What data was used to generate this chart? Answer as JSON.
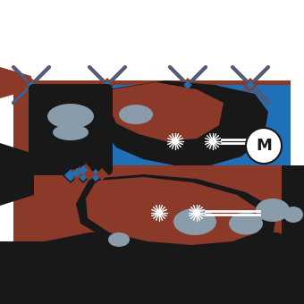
{
  "bg_color": "#ffffff",
  "brown": "#8B3A2A",
  "blue": "#2070B8",
  "black": "#181818",
  "gray": "#8A9BAA",
  "white": "#ffffff",
  "fig_w": 3.4,
  "fig_h": 3.4,
  "dpi": 100
}
